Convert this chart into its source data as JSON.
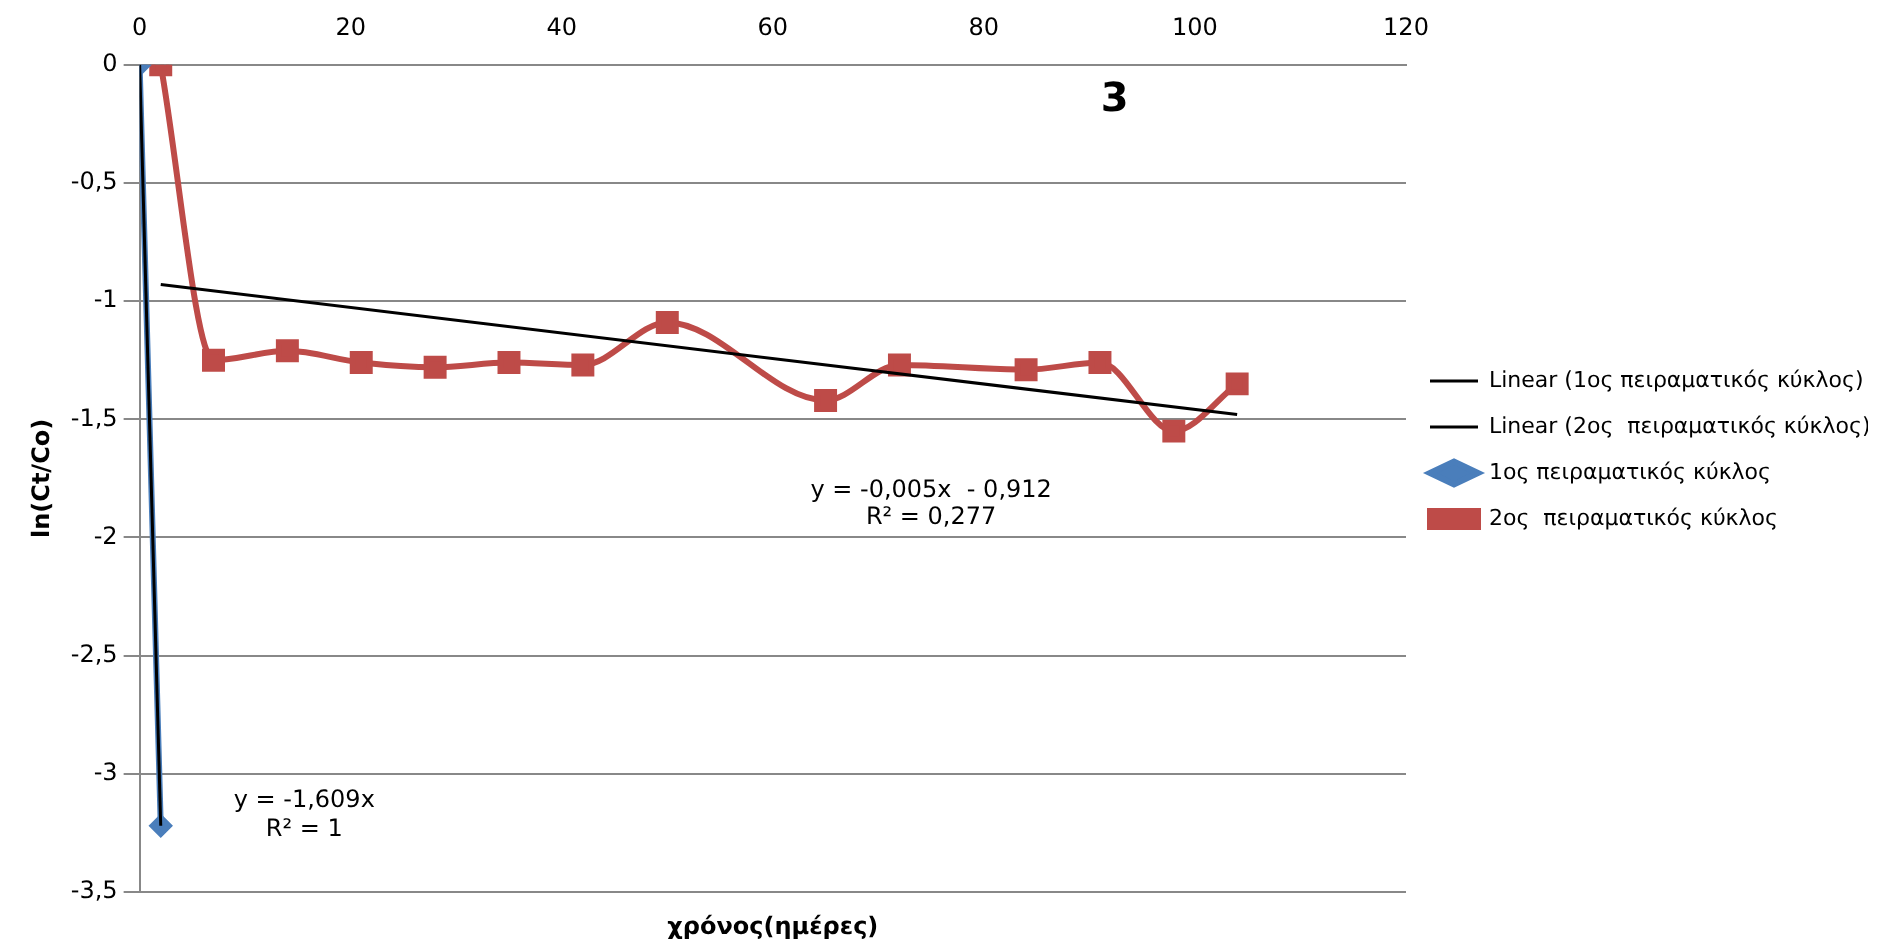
{
  "chart_data": {
    "type": "line",
    "title": "3",
    "xlabel": "χρόνος(ημέρες)",
    "ylabel": "ln(Ct/Co)",
    "xlim": [
      0,
      120
    ],
    "xticks": [
      0,
      20,
      40,
      60,
      80,
      100,
      120
    ],
    "ylim": [
      -3.5,
      0
    ],
    "yticks": [
      {
        "value": -3.5,
        "label": "-3,5"
      },
      {
        "value": -3,
        "label": "-3"
      },
      {
        "value": -2.5,
        "label": "-2,5"
      },
      {
        "value": -2,
        "label": "-2"
      },
      {
        "value": -1.5,
        "label": "-1,5"
      },
      {
        "value": -1,
        "label": "-1"
      },
      {
        "value": -0.5,
        "label": "-0,5"
      },
      {
        "value": 0,
        "label": "0"
      }
    ],
    "grid": "y",
    "legend": "right",
    "series": [
      {
        "name": "1ος πειραματικός κύκλος",
        "color": "#4a7ebb",
        "marker": "diamond",
        "x": [
          0,
          2
        ],
        "values": [
          0,
          -3.22
        ]
      },
      {
        "name": "2ος  πειραματικός κύκλος",
        "color": "#be4b48",
        "marker": "square",
        "x": [
          2,
          7,
          14,
          21,
          28,
          35,
          42,
          50,
          65,
          72,
          84,
          91,
          98,
          104
        ],
        "values": [
          0,
          -1.25,
          -1.21,
          -1.26,
          -1.28,
          -1.26,
          -1.27,
          -1.09,
          -1.42,
          -1.27,
          -1.29,
          -1.26,
          -1.55,
          -1.35
        ]
      },
      {
        "name": "Linear (1ος πειραματικός κύκλος)",
        "color": "#000000",
        "marker": "none",
        "x": [
          0,
          2
        ],
        "values": [
          0,
          -3.22
        ]
      },
      {
        "name": "Linear (2ος  πειραματικός κύκλος)",
        "color": "#000000",
        "marker": "none",
        "x": [
          2,
          104
        ],
        "values": [
          -0.93,
          -1.48
        ]
      }
    ],
    "annotations": [
      "y = -0,005x  - 0,912",
      "R² = 0,277",
      "y = -1,609x",
      "R² = 1"
    ]
  }
}
